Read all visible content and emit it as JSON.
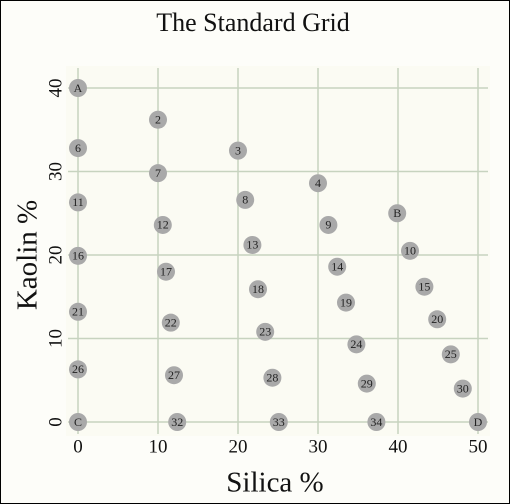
{
  "chart_data": {
    "type": "scatter",
    "title": "The Standard Grid",
    "x_label": "Silica %",
    "y_label": "Kaolin %",
    "xlim": [
      0,
      50
    ],
    "ylim": [
      0,
      40
    ],
    "xticks": [
      0,
      10,
      20,
      30,
      40,
      50
    ],
    "yticks": [
      0,
      10,
      20,
      30,
      40
    ],
    "grid": true,
    "color": "#a9a9a9",
    "labels": [
      "A",
      "2",
      "6",
      "3",
      "7",
      "4",
      "11",
      "8",
      "B",
      "12",
      "9",
      "13",
      "16",
      "10",
      "17",
      "14",
      "18",
      "15",
      "19",
      "21",
      "22",
      "20",
      "23",
      "24",
      "25",
      "26",
      "27",
      "28",
      "29",
      "30",
      "C",
      "32",
      "33",
      "34",
      "D"
    ],
    "x": [
      0,
      10,
      0,
      20,
      10,
      30,
      0,
      20.9,
      39.9,
      10.6,
      31.3,
      21.8,
      0,
      41.5,
      11,
      32.4,
      22.5,
      43.3,
      33.5,
      0,
      11.6,
      44.9,
      23.4,
      34.8,
      46.6,
      0,
      12,
      24.3,
      36.1,
      48.1,
      0,
      12.4,
      25.1,
      37.3,
      50
    ],
    "y": [
      40,
      36.2,
      32.8,
      32.5,
      29.8,
      28.6,
      26.3,
      26.6,
      25,
      23.6,
      23.6,
      21.2,
      19.9,
      20.5,
      18,
      18.6,
      15.9,
      16.2,
      14.3,
      13.2,
      11.9,
      12.3,
      10.8,
      9.3,
      8.1,
      6.3,
      5.6,
      5.3,
      4.6,
      4,
      0,
      0,
      0,
      0,
      0
    ]
  }
}
